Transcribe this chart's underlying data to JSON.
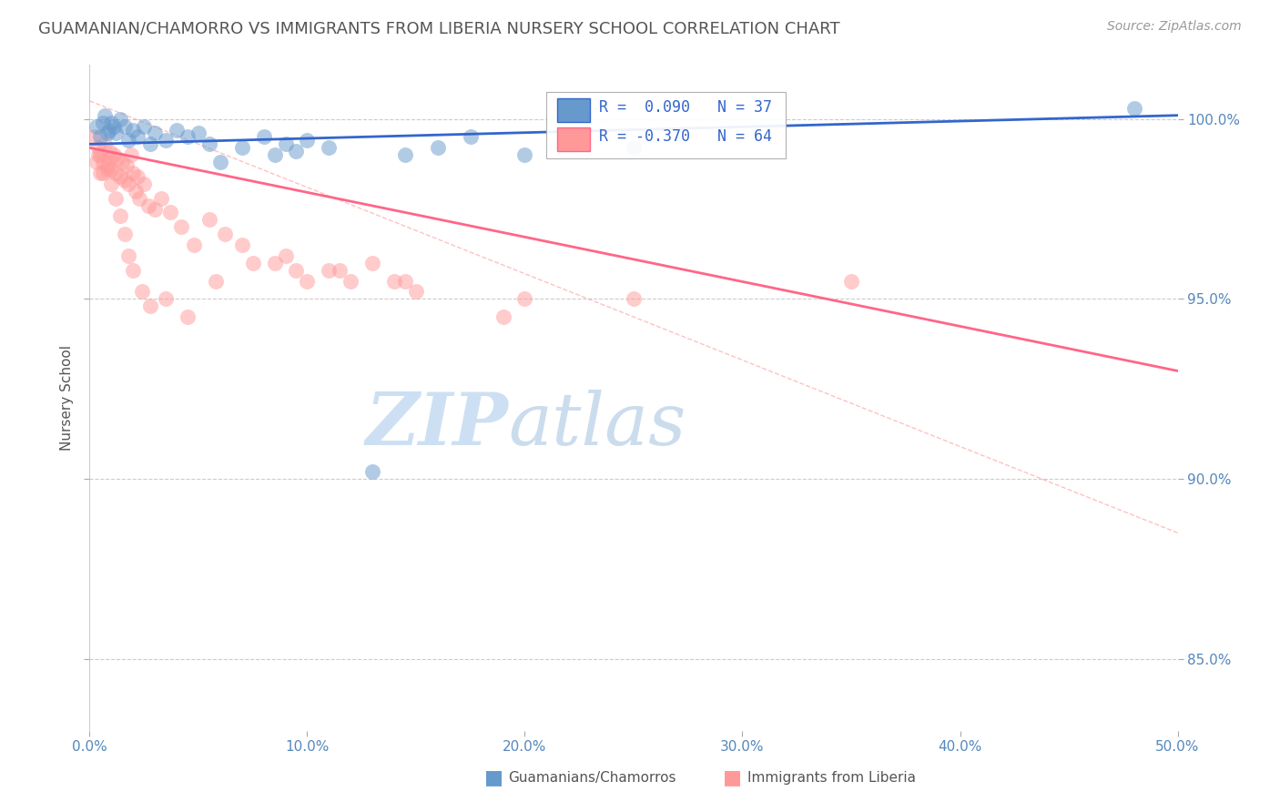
{
  "title": "GUAMANIAN/CHAMORRO VS IMMIGRANTS FROM LIBERIA NURSERY SCHOOL CORRELATION CHART",
  "source_text": "Source: ZipAtlas.com",
  "ylabel": "Nursery School",
  "watermark_zip": "ZIP",
  "watermark_atlas": "atlas",
  "xmin": 0.0,
  "xmax": 50.0,
  "ymin": 83.0,
  "ymax": 101.5,
  "yticks": [
    85.0,
    90.0,
    95.0,
    100.0
  ],
  "ytick_labels": [
    "85.0%",
    "90.0%",
    "95.0%",
    "100.0%"
  ],
  "xticks": [
    0.0,
    10.0,
    20.0,
    30.0,
    40.0,
    50.0
  ],
  "xtick_labels": [
    "0.0%",
    "10.0%",
    "20.0%",
    "30.0%",
    "40.0%",
    "50.0%"
  ],
  "legend_r1": "R =  0.090",
  "legend_n1": "N = 37",
  "legend_r2": "R = -0.370",
  "legend_n2": "N = 64",
  "blue_color": "#6699CC",
  "pink_color": "#FF9999",
  "blue_line_color": "#3366CC",
  "pink_line_color": "#FF6688",
  "dash_line_color": "#FF9999",
  "title_color": "#555555",
  "axis_label_color": "#555555",
  "tick_color": "#5588BB",
  "legend_text_color": "#3366CC",
  "blue_dots_x": [
    0.3,
    0.5,
    0.7,
    0.9,
    1.0,
    1.2,
    1.4,
    1.6,
    1.8,
    2.0,
    2.2,
    2.5,
    2.8,
    3.0,
    3.5,
    4.0,
    4.5,
    5.0,
    5.5,
    6.0,
    7.0,
    8.0,
    8.5,
    9.0,
    9.5,
    10.0,
    11.0,
    13.0,
    14.5,
    16.0,
    17.5,
    20.0,
    25.0,
    48.0,
    0.6,
    0.8,
    1.1
  ],
  "blue_dots_y": [
    99.8,
    99.5,
    100.1,
    99.7,
    99.9,
    99.6,
    100.0,
    99.8,
    99.4,
    99.7,
    99.5,
    99.8,
    99.3,
    99.6,
    99.4,
    99.7,
    99.5,
    99.6,
    99.3,
    98.8,
    99.2,
    99.5,
    99.0,
    99.3,
    99.1,
    99.4,
    99.2,
    90.2,
    99.0,
    99.2,
    99.5,
    99.0,
    99.2,
    100.3,
    99.9,
    99.6,
    99.8
  ],
  "pink_dots_x": [
    0.2,
    0.3,
    0.4,
    0.5,
    0.6,
    0.7,
    0.8,
    0.9,
    1.0,
    1.1,
    1.2,
    1.3,
    1.4,
    1.5,
    1.6,
    1.7,
    1.8,
    1.9,
    2.0,
    2.1,
    2.2,
    2.3,
    2.5,
    2.7,
    3.0,
    3.3,
    3.7,
    4.2,
    4.8,
    5.5,
    6.2,
    7.0,
    8.5,
    10.0,
    11.5,
    13.0,
    14.5,
    0.4,
    0.6,
    0.8,
    1.0,
    1.2,
    1.4,
    1.6,
    1.8,
    2.0,
    2.4,
    2.8,
    3.5,
    4.5,
    5.8,
    7.5,
    9.5,
    12.0,
    15.0,
    19.0,
    25.0,
    35.0,
    9.0,
    11.0,
    14.0,
    20.0,
    0.5,
    0.9
  ],
  "pink_dots_y": [
    99.5,
    98.8,
    99.2,
    99.0,
    98.5,
    99.3,
    98.7,
    99.1,
    98.6,
    99.0,
    98.5,
    98.9,
    98.4,
    98.8,
    98.3,
    98.7,
    98.2,
    99.0,
    98.5,
    98.0,
    98.4,
    97.8,
    98.2,
    97.6,
    97.5,
    97.8,
    97.4,
    97.0,
    96.5,
    97.2,
    96.8,
    96.5,
    96.0,
    95.5,
    95.8,
    96.0,
    95.5,
    99.0,
    98.8,
    98.6,
    98.2,
    97.8,
    97.3,
    96.8,
    96.2,
    95.8,
    95.2,
    94.8,
    95.0,
    94.5,
    95.5,
    96.0,
    95.8,
    95.5,
    95.2,
    94.5,
    95.0,
    95.5,
    96.2,
    95.8,
    95.5,
    95.0,
    98.5,
    98.9
  ],
  "blue_trend_x0": 0.0,
  "blue_trend_y0": 99.3,
  "blue_trend_x1": 50.0,
  "blue_trend_y1": 100.1,
  "pink_trend_x0": 0.0,
  "pink_trend_y0": 99.2,
  "pink_trend_x1": 50.0,
  "pink_trend_y1": 93.0,
  "diag_x0": 0.0,
  "diag_y0": 100.5,
  "diag_x1": 50.0,
  "diag_y1": 88.5
}
